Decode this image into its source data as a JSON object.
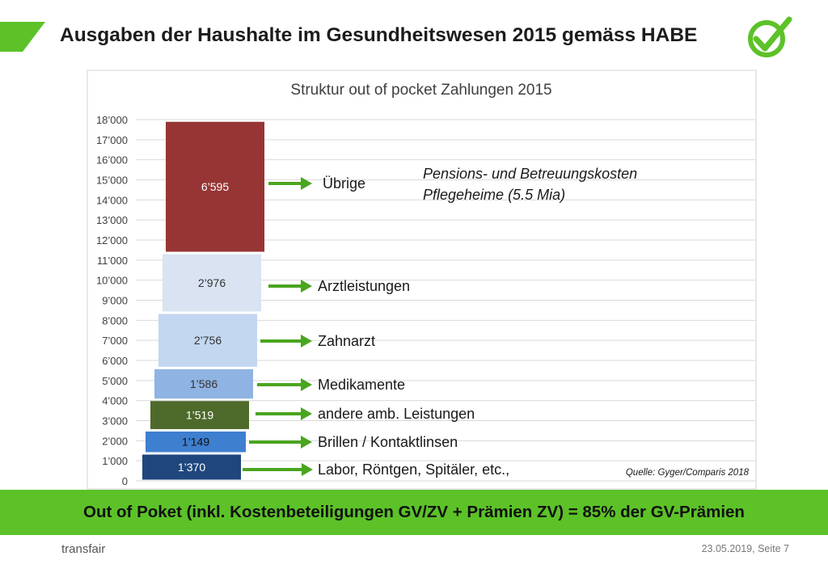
{
  "slide": {
    "title": "Ausgaben der Haushalte im Gesundheitswesen 2015 gemäss HABE",
    "banner": "Out of Poket (inkl. Kostenbeteiligungen GV/ZV + Prämien ZV) = 85% der GV-Prämien",
    "footer_brand": "transfair",
    "footer_date": "23.05.2019, Seite 7",
    "source": "Quelle: Gyger/Comparis 2018",
    "note": [
      "Pensions- und Betreuungskosten",
      "Pflegeheime (5.5 Mia)"
    ],
    "colors": {
      "accent_green": "#5cc228",
      "arrow_green": "#4aa51f"
    },
    "logo_icon": "check-circle-icon"
  },
  "chart_data": {
    "type": "bar",
    "subtype": "waterfall-stacked",
    "title": "Struktur out of pocket Zahlungen 2015",
    "ylim": [
      0,
      18000
    ],
    "grid": true,
    "yticks": [
      {
        "value": 0,
        "label": "0"
      },
      {
        "value": 1000,
        "label": "1’000"
      },
      {
        "value": 2000,
        "label": "2’000"
      },
      {
        "value": 3000,
        "label": "3’000"
      },
      {
        "value": 4000,
        "label": "4’000"
      },
      {
        "value": 5000,
        "label": "5’000"
      },
      {
        "value": 6000,
        "label": "6’000"
      },
      {
        "value": 7000,
        "label": "7’000"
      },
      {
        "value": 8000,
        "label": "8’000"
      },
      {
        "value": 9000,
        "label": "9’000"
      },
      {
        "value": 10000,
        "label": "10’000"
      },
      {
        "value": 11000,
        "label": "11’000"
      },
      {
        "value": 12000,
        "label": "12’000"
      },
      {
        "value": 13000,
        "label": "13’000"
      },
      {
        "value": 14000,
        "label": "14’000"
      },
      {
        "value": 15000,
        "label": "15’000"
      },
      {
        "value": 16000,
        "label": "16’000"
      },
      {
        "value": 17000,
        "label": "17’000"
      },
      {
        "value": 18000,
        "label": "18’000"
      }
    ],
    "segments": [
      {
        "category": "Labor, Röntgen, Spitäler, etc.,",
        "value": 1370,
        "label": "1’370",
        "color": "#1f477e",
        "text_color": "#ffffff"
      },
      {
        "category": "Brillen / Kontaktlinsen",
        "value": 1149,
        "label": "1’149",
        "color": "#3f7fd0",
        "text_color": "#111111"
      },
      {
        "category": "andere amb. Leistungen",
        "value": 1519,
        "label": "1’519",
        "color": "#4e6a2b",
        "text_color": "#ffffff"
      },
      {
        "category": "Medikamente",
        "value": 1586,
        "label": "1’586",
        "color": "#8fb3e3",
        "text_color": "#333333"
      },
      {
        "category": "Zahnarzt",
        "value": 2756,
        "label": "2’756",
        "color": "#c3d7f0",
        "text_color": "#333333"
      },
      {
        "category": "Arztleistungen",
        "value": 2976,
        "label": "2’976",
        "color": "#d9e3f2",
        "text_color": "#333333"
      },
      {
        "category": "Übrige",
        "value": 6595,
        "label": "6’595",
        "color": "#973535",
        "text_color": "#ffffff"
      }
    ]
  }
}
